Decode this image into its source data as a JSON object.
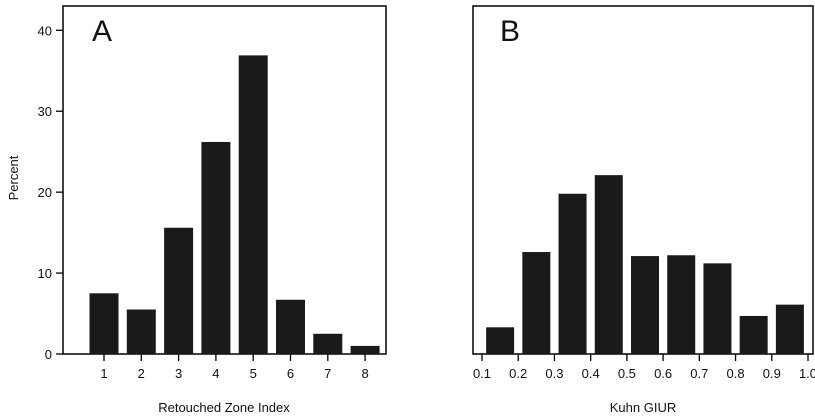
{
  "ylabel": "Percent",
  "chart_data": [
    {
      "type": "bar",
      "panel_label": "A",
      "title": "",
      "xlabel": "Retouched Zone Index",
      "ylabel": "Percent",
      "categories": [
        "1",
        "2",
        "3",
        "4",
        "5",
        "6",
        "7",
        "8"
      ],
      "values": [
        7.5,
        5.5,
        15.6,
        26.2,
        36.9,
        6.7,
        2.5,
        1.0
      ],
      "ylim": [
        0,
        43
      ],
      "yticks": [
        0,
        10,
        20,
        30,
        40
      ],
      "grid": false,
      "legend": "none"
    },
    {
      "type": "bar",
      "panel_label": "B",
      "title": "",
      "xlabel": "Kuhn GIUR",
      "ylabel": "",
      "x": [
        0.15,
        0.25,
        0.35,
        0.45,
        0.55,
        0.65,
        0.75,
        0.85,
        0.95
      ],
      "values": [
        3.3,
        12.6,
        19.8,
        22.1,
        12.1,
        12.2,
        11.2,
        4.7,
        6.1
      ],
      "bin_width": 0.1,
      "xlim": [
        0.1,
        1.0
      ],
      "xticks": [
        "0.1",
        "0.2",
        "0.3",
        "0.4",
        "0.5",
        "0.6",
        "0.7",
        "0.8",
        "0.9",
        "1.0"
      ],
      "ylim": [
        0,
        43
      ],
      "grid": false,
      "legend": "none"
    }
  ]
}
